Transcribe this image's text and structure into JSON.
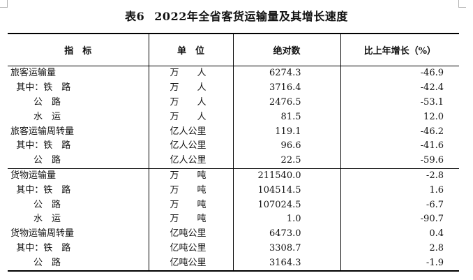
{
  "title": {
    "label": "表6",
    "text": "2022年全省客货运输量及其增长速度"
  },
  "headers": [
    "指　标",
    "单　位",
    "绝对数",
    "比上年增长（%）"
  ],
  "rows": [
    {
      "indicator": "旅客运输量",
      "unit": "万　　人",
      "value": "6274.3",
      "growth": "-46.9"
    },
    {
      "indicator": "  其中：铁　路",
      "unit": "万　　人",
      "value": "3716.4",
      "growth": "-42.4"
    },
    {
      "indicator": "        公　路",
      "unit": "万　　人",
      "value": "2476.5",
      "growth": "-53.1"
    },
    {
      "indicator": "        水　运",
      "unit": "万　　人",
      "value": "81.5",
      "growth": "12.0"
    },
    {
      "indicator": "旅客运输周转量",
      "unit": "亿人公里",
      "value": "119.1",
      "growth": "-46.2"
    },
    {
      "indicator": "  其中：铁　路",
      "unit": "亿人公里",
      "value": "96.6",
      "growth": "-41.6"
    },
    {
      "indicator": "        公　路",
      "unit": "亿人公里",
      "value": "22.5",
      "growth": "-59.6"
    },
    {
      "indicator": "货物运输量",
      "unit": "万　　吨",
      "value": "211540.0",
      "growth": "-2.8"
    },
    {
      "indicator": "  其中：铁　路",
      "unit": "万　　吨",
      "value": "104514.5",
      "growth": "1.6"
    },
    {
      "indicator": "        公　路",
      "unit": "万　　吨",
      "value": "107024.5",
      "growth": "-6.7"
    },
    {
      "indicator": "        水　运",
      "unit": "万　　吨",
      "value": "1.0",
      "growth": "-90.7"
    },
    {
      "indicator": "货物运输周转量",
      "unit": "亿吨公里",
      "value": "6473.0",
      "growth": "0.4"
    },
    {
      "indicator": "  其中：铁　路",
      "unit": "亿吨公里",
      "value": "3308.7",
      "growth": "2.8"
    },
    {
      "indicator": "        公　路",
      "unit": "亿吨公里",
      "value": "3164.3",
      "growth": "-1.9"
    }
  ]
}
